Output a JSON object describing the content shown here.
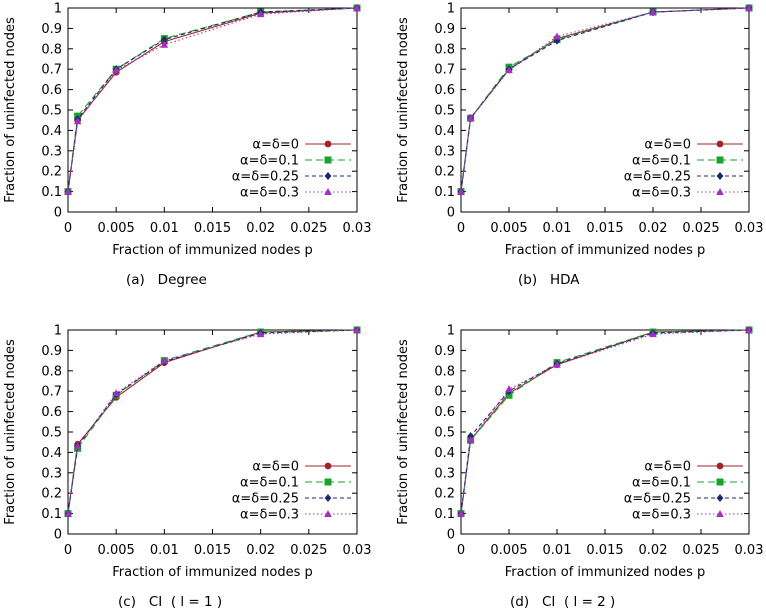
{
  "colors": {
    "series_0": "#a0252a",
    "series_1": "#1aa32a",
    "series_2": "#1c2a6e",
    "series_3": "#a42ec4"
  },
  "chart_data": [
    {
      "type": "line",
      "caption": "(a)   Degree",
      "xlabel": "Fraction of immunized nodes p",
      "ylabel": "Fraction of uninfected nodes",
      "xlim": [
        0,
        0.03
      ],
      "ylim": [
        0,
        1
      ],
      "x_ticks": [
        "0",
        "0.005",
        "0.01",
        "0.015",
        "0.02",
        "0.025",
        "0.03"
      ],
      "y_ticks": [
        "0",
        "0.1",
        "0.2",
        "0.3",
        "0.4",
        "0.5",
        "0.6",
        "0.7",
        "0.8",
        "0.9",
        "1"
      ],
      "legend_position": "bottom-right",
      "x": [
        0,
        0.001,
        0.005,
        0.01,
        0.02,
        0.03
      ],
      "series": [
        {
          "name": "α=δ=0",
          "marker": "circle",
          "dash": "solid",
          "values": [
            0.1,
            0.45,
            0.685,
            0.835,
            0.975,
            1.0
          ]
        },
        {
          "name": "α=δ=0.1",
          "marker": "square",
          "dash": "long",
          "values": [
            0.1,
            0.47,
            0.7,
            0.85,
            0.98,
            1.0
          ]
        },
        {
          "name": "α=δ=0.25",
          "marker": "diamond",
          "dash": "short",
          "values": [
            0.1,
            0.455,
            0.7,
            0.845,
            0.98,
            1.0
          ]
        },
        {
          "name": "α=δ=0.3",
          "marker": "triangle",
          "dash": "dot",
          "values": [
            0.1,
            0.445,
            0.695,
            0.82,
            0.97,
            1.0
          ]
        }
      ]
    },
    {
      "type": "line",
      "caption": "(b)   HDA",
      "xlabel": "Fraction of immunized nodes p",
      "ylabel": "Fraction of uninfected nodes",
      "xlim": [
        0,
        0.03
      ],
      "ylim": [
        0,
        1
      ],
      "x_ticks": [
        "0",
        "0.005",
        "0.01",
        "0.015",
        "0.02",
        "0.025",
        "0.03"
      ],
      "y_ticks": [
        "0",
        "0.1",
        "0.2",
        "0.3",
        "0.4",
        "0.5",
        "0.6",
        "0.7",
        "0.8",
        "0.9",
        "1"
      ],
      "legend_position": "bottom-right",
      "x": [
        0,
        0.001,
        0.005,
        0.01,
        0.02,
        0.03
      ],
      "series": [
        {
          "name": "α=δ=0",
          "marker": "circle",
          "dash": "solid",
          "values": [
            0.1,
            0.46,
            0.7,
            0.85,
            0.98,
            1.0
          ]
        },
        {
          "name": "α=δ=0.1",
          "marker": "square",
          "dash": "long",
          "values": [
            0.1,
            0.46,
            0.71,
            0.845,
            0.98,
            1.0
          ]
        },
        {
          "name": "α=δ=0.25",
          "marker": "diamond",
          "dash": "short",
          "values": [
            0.1,
            0.46,
            0.7,
            0.84,
            0.98,
            1.0
          ]
        },
        {
          "name": "α=δ=0.3",
          "marker": "triangle",
          "dash": "dot",
          "values": [
            0.1,
            0.46,
            0.695,
            0.86,
            0.98,
            1.0
          ]
        }
      ]
    },
    {
      "type": "line",
      "caption": "(c)   CI  ( l = 1 )",
      "xlabel": "Fraction of immunized nodes p",
      "ylabel": "Fraction of uninfected nodes",
      "xlim": [
        0,
        0.03
      ],
      "ylim": [
        0,
        1
      ],
      "x_ticks": [
        "0",
        "0.005",
        "0.01",
        "0.015",
        "0.02",
        "0.025",
        "0.03"
      ],
      "y_ticks": [
        "0",
        "0.1",
        "0.2",
        "0.3",
        "0.4",
        "0.5",
        "0.6",
        "0.7",
        "0.8",
        "0.9",
        "1"
      ],
      "legend_position": "bottom-right",
      "x": [
        0,
        0.001,
        0.005,
        0.01,
        0.02,
        0.03
      ],
      "series": [
        {
          "name": "α=δ=0",
          "marker": "circle",
          "dash": "solid",
          "values": [
            0.1,
            0.44,
            0.67,
            0.84,
            0.99,
            1.0
          ]
        },
        {
          "name": "α=δ=0.1",
          "marker": "square",
          "dash": "long",
          "values": [
            0.1,
            0.42,
            0.68,
            0.85,
            0.99,
            1.0
          ]
        },
        {
          "name": "α=δ=0.25",
          "marker": "diamond",
          "dash": "short",
          "values": [
            0.1,
            0.43,
            0.685,
            0.845,
            0.985,
            1.0
          ]
        },
        {
          "name": "α=δ=0.3",
          "marker": "triangle",
          "dash": "dot",
          "values": [
            0.1,
            0.43,
            0.69,
            0.85,
            0.98,
            1.0
          ]
        }
      ]
    },
    {
      "type": "line",
      "caption": "(d)   CI  ( l = 2 )",
      "xlabel": "Fraction of immunized nodes p",
      "ylabel": "Fraction of uninfected nodes",
      "xlim": [
        0,
        0.03
      ],
      "ylim": [
        0,
        1
      ],
      "x_ticks": [
        "0",
        "0.005",
        "0.01",
        "0.015",
        "0.02",
        "0.025",
        "0.03"
      ],
      "y_ticks": [
        "0",
        "0.1",
        "0.2",
        "0.3",
        "0.4",
        "0.5",
        "0.6",
        "0.7",
        "0.8",
        "0.9",
        "1"
      ],
      "legend_position": "bottom-right",
      "x": [
        0,
        0.001,
        0.005,
        0.01,
        0.02,
        0.03
      ],
      "series": [
        {
          "name": "α=δ=0",
          "marker": "circle",
          "dash": "solid",
          "values": [
            0.1,
            0.46,
            0.69,
            0.83,
            0.99,
            1.0
          ]
        },
        {
          "name": "α=δ=0.1",
          "marker": "square",
          "dash": "long",
          "values": [
            0.1,
            0.46,
            0.68,
            0.84,
            0.99,
            1.0
          ]
        },
        {
          "name": "α=δ=0.25",
          "marker": "diamond",
          "dash": "short",
          "values": [
            0.1,
            0.48,
            0.7,
            0.835,
            0.985,
            1.0
          ]
        },
        {
          "name": "α=δ=0.3",
          "marker": "triangle",
          "dash": "dot",
          "values": [
            0.1,
            0.46,
            0.71,
            0.83,
            0.98,
            1.0
          ]
        }
      ]
    }
  ]
}
